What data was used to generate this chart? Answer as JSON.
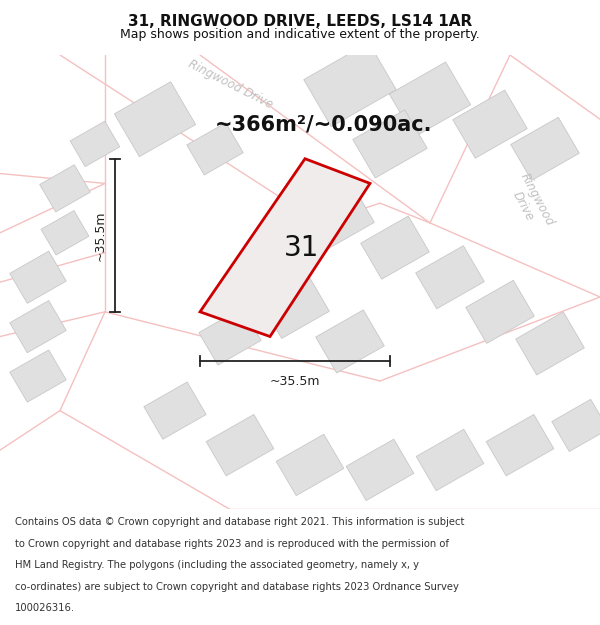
{
  "title": "31, RINGWOOD DRIVE, LEEDS, LS14 1AR",
  "subtitle": "Map shows position and indicative extent of the property.",
  "area_text": "~366m²/~0.090ac.",
  "dim_horiz": "~35.5m",
  "dim_vert": "~35.5m",
  "number_label": "31",
  "footer_lines": [
    "Contains OS data © Crown copyright and database right 2021. This information is subject",
    "to Crown copyright and database rights 2023 and is reproduced with the permission of",
    "HM Land Registry. The polygons (including the associated geometry, namely x, y",
    "co-ordinates) are subject to Crown copyright and database rights 2023 Ordnance Survey",
    "100026316."
  ],
  "map_bg": "#f5f5f5",
  "road_color": "#f5c0c0",
  "bld_fill": "#e0e0e0",
  "bld_edge": "#c8c8c8",
  "plot_edge": "#cc0000",
  "plot_fill": "#f0ecec",
  "dim_color": "#222222",
  "text_color": "#111111",
  "road_label_color": "#c0c0c0",
  "title_fontsize": 11,
  "subtitle_fontsize": 9,
  "area_fontsize": 15,
  "number_fontsize": 20,
  "footer_fontsize": 7.2
}
